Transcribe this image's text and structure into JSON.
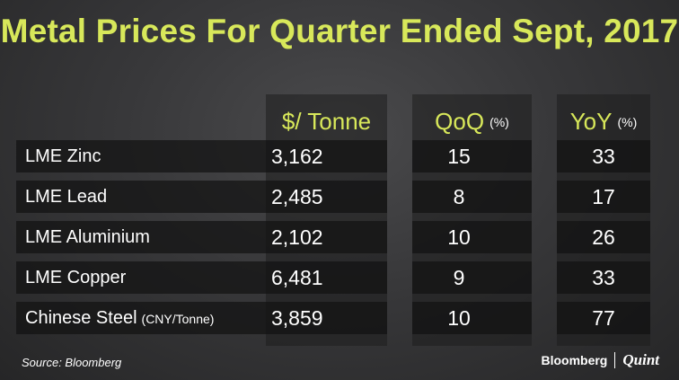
{
  "title": "Metal Prices For Quarter Ended Sept, 2017",
  "source": "Source: Bloomberg",
  "brand": {
    "left": "Bloomberg",
    "right": "Quint"
  },
  "colors": {
    "accent": "#d8e85a",
    "text": "#ffffff",
    "background": "#38383a"
  },
  "chart_data": {
    "type": "table",
    "title": "Metal Prices For Quarter Ended Sept, 2017",
    "columns": [
      {
        "label": "$/ Tonne",
        "unit": ""
      },
      {
        "label": "QoQ",
        "unit": "(%)"
      },
      {
        "label": "YoY",
        "unit": "(%)"
      }
    ],
    "rows": [
      {
        "name": "LME Zinc",
        "note": "",
        "price": "3,162",
        "qoq": "15",
        "yoy": "33"
      },
      {
        "name": "LME Lead",
        "note": "",
        "price": "2,485",
        "qoq": "8",
        "yoy": "17"
      },
      {
        "name": "LME Aluminium",
        "note": "",
        "price": "2,102",
        "qoq": "10",
        "yoy": "26"
      },
      {
        "name": "LME Copper",
        "note": "",
        "price": "6,481",
        "qoq": "9",
        "yoy": "33"
      },
      {
        "name": "Chinese Steel",
        "note": "(CNY/Tonne)",
        "price": "3,859",
        "qoq": "10",
        "yoy": "77"
      }
    ]
  }
}
